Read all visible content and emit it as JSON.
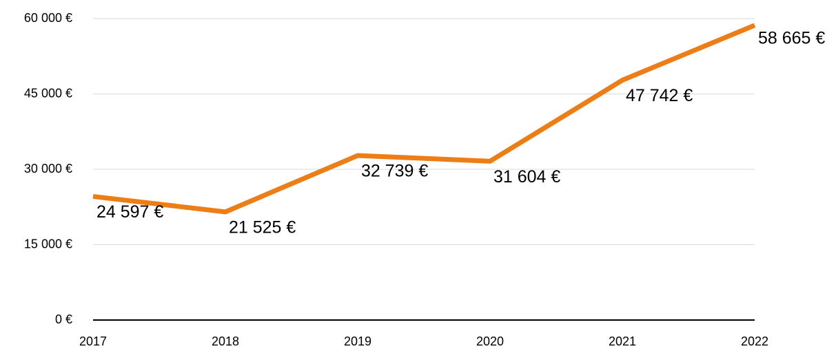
{
  "chart_data": {
    "type": "line",
    "categories": [
      "2017",
      "2018",
      "2019",
      "2020",
      "2021",
      "2022"
    ],
    "series": [
      {
        "name": null,
        "color": "#ed7d16",
        "values": [
          24597,
          21525,
          32739,
          31604,
          47742,
          58665
        ],
        "value_labels": [
          "24 597 €",
          "21 525 €",
          "32 739 €",
          "31 604 €",
          "47 742 €",
          "58 665 €"
        ]
      }
    ],
    "ylim": [
      0,
      60000
    ],
    "yticks": [
      {
        "value": 0,
        "label": "0 €"
      },
      {
        "value": 15000,
        "label": "15 000 €"
      },
      {
        "value": 30000,
        "label": "30 000 €"
      },
      {
        "value": 45000,
        "label": "45 000 €"
      },
      {
        "value": 60000,
        "label": "60 000 €"
      }
    ],
    "grid": true
  }
}
